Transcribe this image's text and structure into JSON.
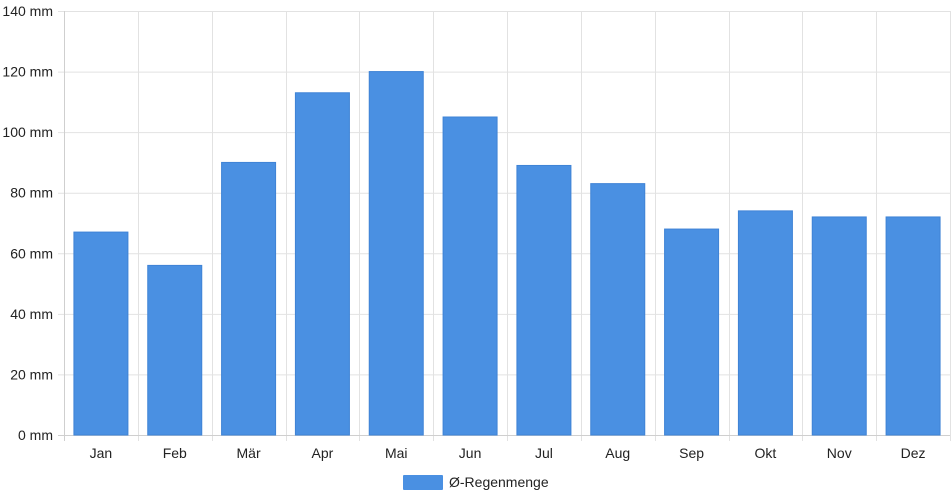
{
  "chart_data": {
    "type": "bar",
    "categories": [
      "Jan",
      "Feb",
      "Mär",
      "Apr",
      "Mai",
      "Jun",
      "Jul",
      "Aug",
      "Sep",
      "Okt",
      "Nov",
      "Dez"
    ],
    "series": [
      {
        "name": "Ø-Regenmenge",
        "values": [
          67,
          56,
          90,
          113,
          120,
          105,
          89,
          83,
          68,
          74,
          72,
          72
        ],
        "color": "#4a90e2"
      }
    ],
    "y_unit": "mm",
    "y_ticks": [
      "0 mm",
      "20 mm",
      "40 mm",
      "60 mm",
      "80 mm",
      "100 mm",
      "120 mm",
      "140 mm"
    ],
    "ylim": [
      0,
      140
    ],
    "grid": true,
    "legend_position": "bottom"
  }
}
